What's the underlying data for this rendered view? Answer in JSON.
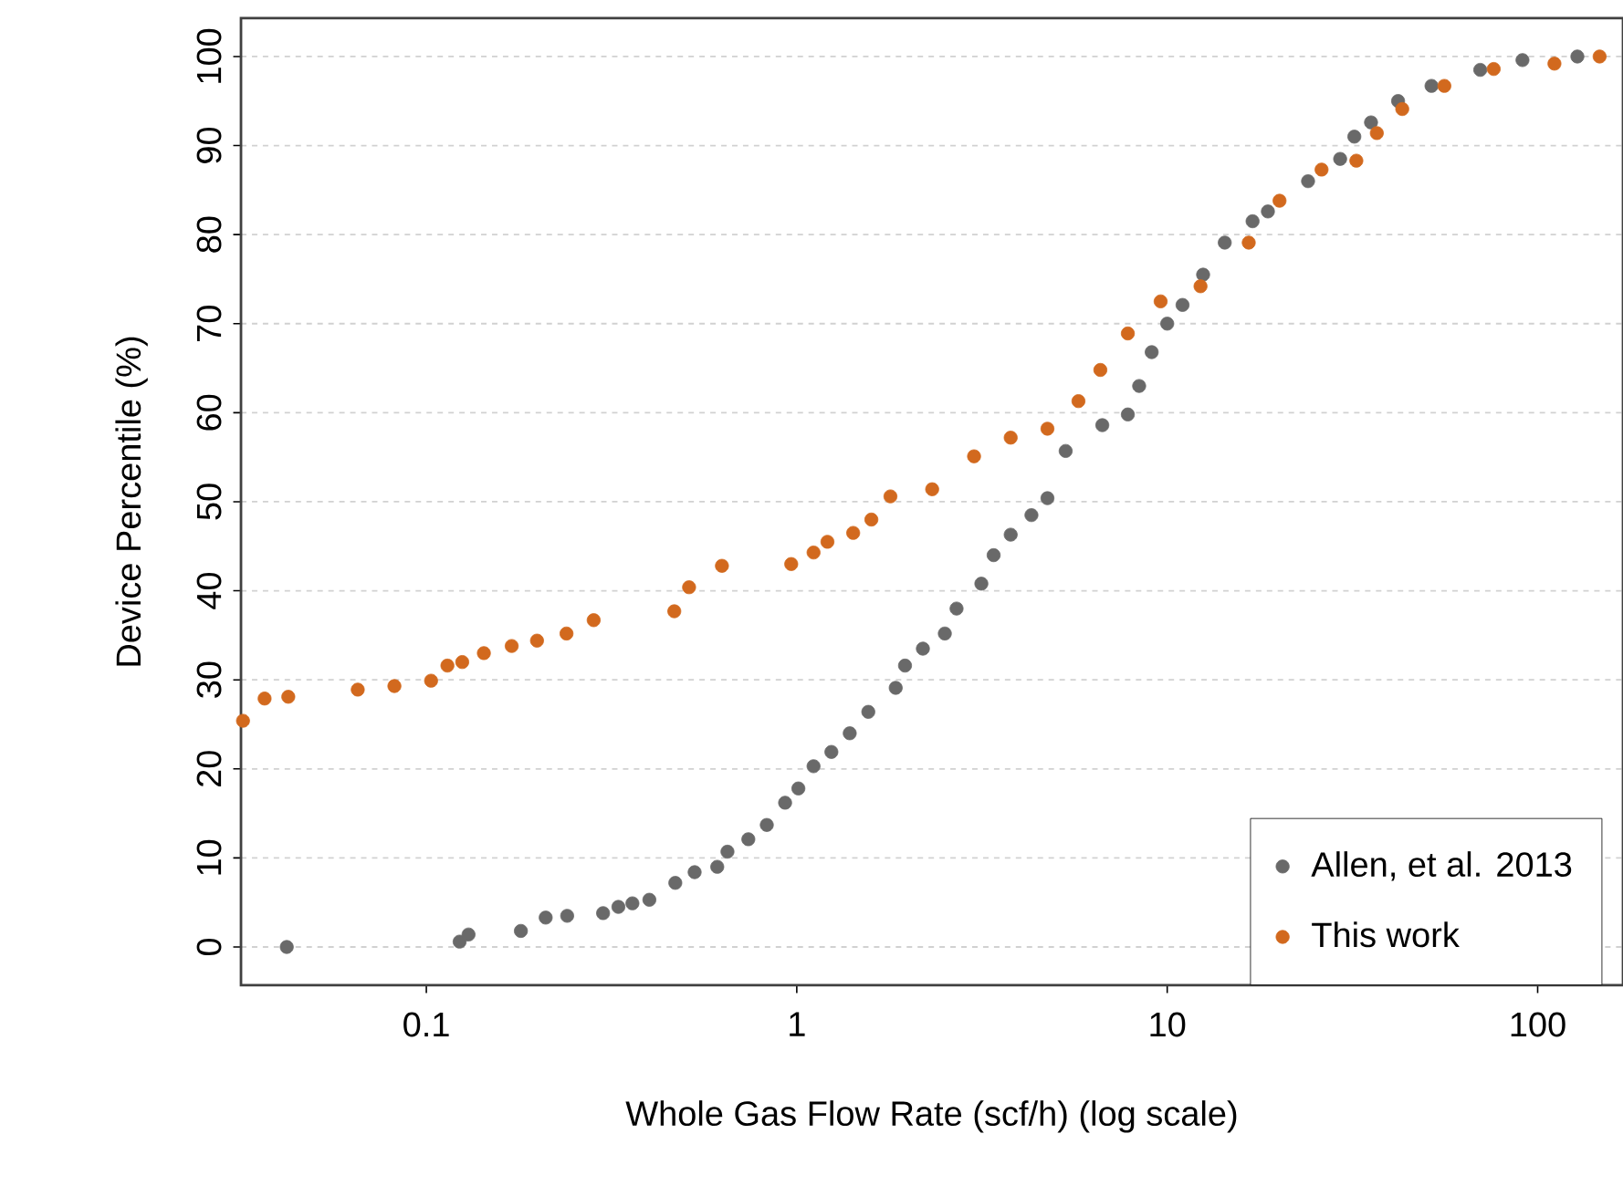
{
  "chart_data": {
    "type": "scatter",
    "xlabel": "Whole Gas Flow Rate (scf/h) (log scale)",
    "ylabel": "Device Percentile (%)",
    "log": "x",
    "grid": "y",
    "legend": "bottom right",
    "marker": "circle",
    "xlim": [
      0.0316,
      170
    ],
    "ylim": [
      -4.3,
      104.3
    ],
    "xticks": [
      0.1,
      1,
      10,
      100
    ],
    "yticks": [
      0,
      10,
      20,
      30,
      40,
      50,
      60,
      70,
      80,
      90,
      100
    ],
    "series": [
      {
        "name": "Allen, et al. 2013",
        "color": "#696969",
        "x": [
          0.042,
          0.123,
          0.13,
          0.18,
          0.21,
          0.24,
          0.3,
          0.33,
          0.36,
          0.4,
          0.47,
          0.53,
          0.61,
          0.65,
          0.74,
          0.83,
          0.93,
          1.01,
          1.11,
          1.24,
          1.39,
          1.56,
          1.85,
          1.96,
          2.19,
          2.51,
          2.7,
          3.15,
          3.4,
          3.78,
          4.3,
          4.75,
          5.32,
          6.68,
          7.83,
          8.4,
          9.08,
          10.0,
          11.0,
          12.5,
          14.3,
          17,
          18.7,
          24,
          29.3,
          32,
          35.5,
          42,
          51.7,
          70,
          91,
          128
        ],
        "values": [
          0,
          0.6,
          1.4,
          1.8,
          3.3,
          3.5,
          3.8,
          4.5,
          4.9,
          5.3,
          7.2,
          8.4,
          9.0,
          10.7,
          12.1,
          13.7,
          16.2,
          17.8,
          20.3,
          21.9,
          24,
          26.4,
          29.1,
          31.6,
          33.5,
          35.2,
          38,
          40.8,
          44,
          46.3,
          48.5,
          50.4,
          55.7,
          58.6,
          59.8,
          63,
          66.8,
          70,
          72.1,
          75.5,
          79.1,
          81.5,
          82.6,
          86,
          88.5,
          91,
          92.6,
          95,
          96.7,
          98.5,
          99.6,
          100
        ]
      },
      {
        "name": "This work",
        "color": "#d2691e",
        "x": [
          0.032,
          0.0366,
          0.0424,
          0.0653,
          0.082,
          0.103,
          0.114,
          0.125,
          0.143,
          0.17,
          0.199,
          0.239,
          0.283,
          0.467,
          0.512,
          0.628,
          0.966,
          1.11,
          1.21,
          1.42,
          1.59,
          1.79,
          2.32,
          3.01,
          3.78,
          4.75,
          5.76,
          6.6,
          7.83,
          9.6,
          12.3,
          16.6,
          20.1,
          26.1,
          32.4,
          36.8,
          43.1,
          56.0,
          76.1,
          111,
          147
        ],
        "values": [
          25.4,
          27.9,
          28.1,
          28.9,
          29.3,
          29.9,
          31.6,
          32,
          33,
          33.8,
          34.4,
          35.2,
          36.7,
          37.7,
          40.4,
          42.8,
          43.0,
          44.3,
          45.5,
          46.5,
          48,
          50.6,
          51.4,
          55.1,
          57.2,
          58.2,
          61.3,
          64.8,
          68.9,
          72.5,
          74.2,
          79.1,
          83.8,
          87.3,
          88.3,
          91.4,
          94.1,
          96.7,
          98.6,
          99.2,
          100
        ]
      }
    ]
  }
}
